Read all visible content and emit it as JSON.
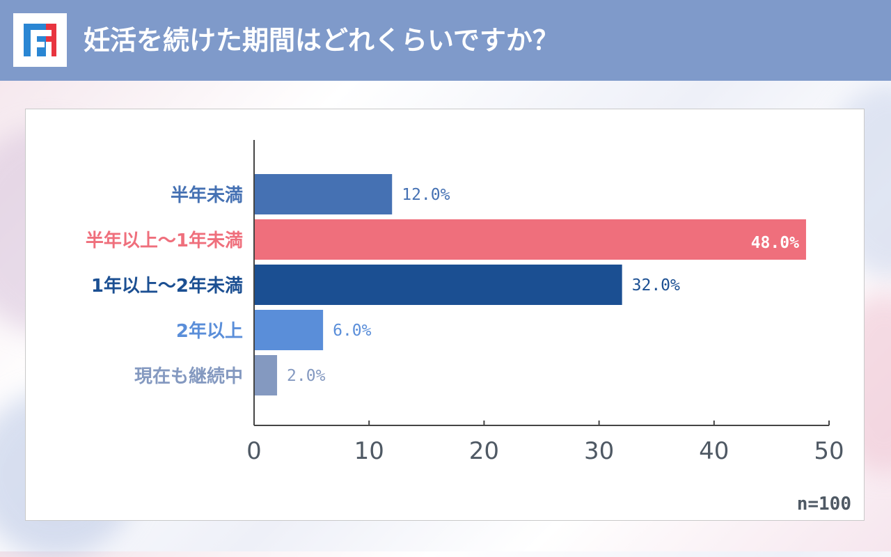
{
  "header": {
    "title": "妊活を続けた期間はどれくらいですか？",
    "logo_icon": "brand-logo-icon",
    "background": "#7f9aca"
  },
  "chart_data": {
    "type": "bar",
    "orientation": "horizontal",
    "categories": [
      "半年未満",
      "半年以上〜1年未満",
      "1年以上〜2年未満",
      "2年以上",
      "現在も継続中"
    ],
    "values": [
      12.0,
      48.0,
      32.0,
      6.0,
      2.0
    ],
    "value_labels": [
      "12.0%",
      "48.0%",
      "32.0%",
      "6.0%",
      "2.0%"
    ],
    "colors": [
      "#4571b3",
      "#ef6f7c",
      "#1b4f92",
      "#5a8ed9",
      "#8499c0"
    ],
    "highlight_index": 1,
    "xlim": [
      0,
      50
    ],
    "xticks": [
      "0",
      "10",
      "20",
      "30",
      "40",
      "50"
    ],
    "grid": false,
    "note": "n=100"
  }
}
